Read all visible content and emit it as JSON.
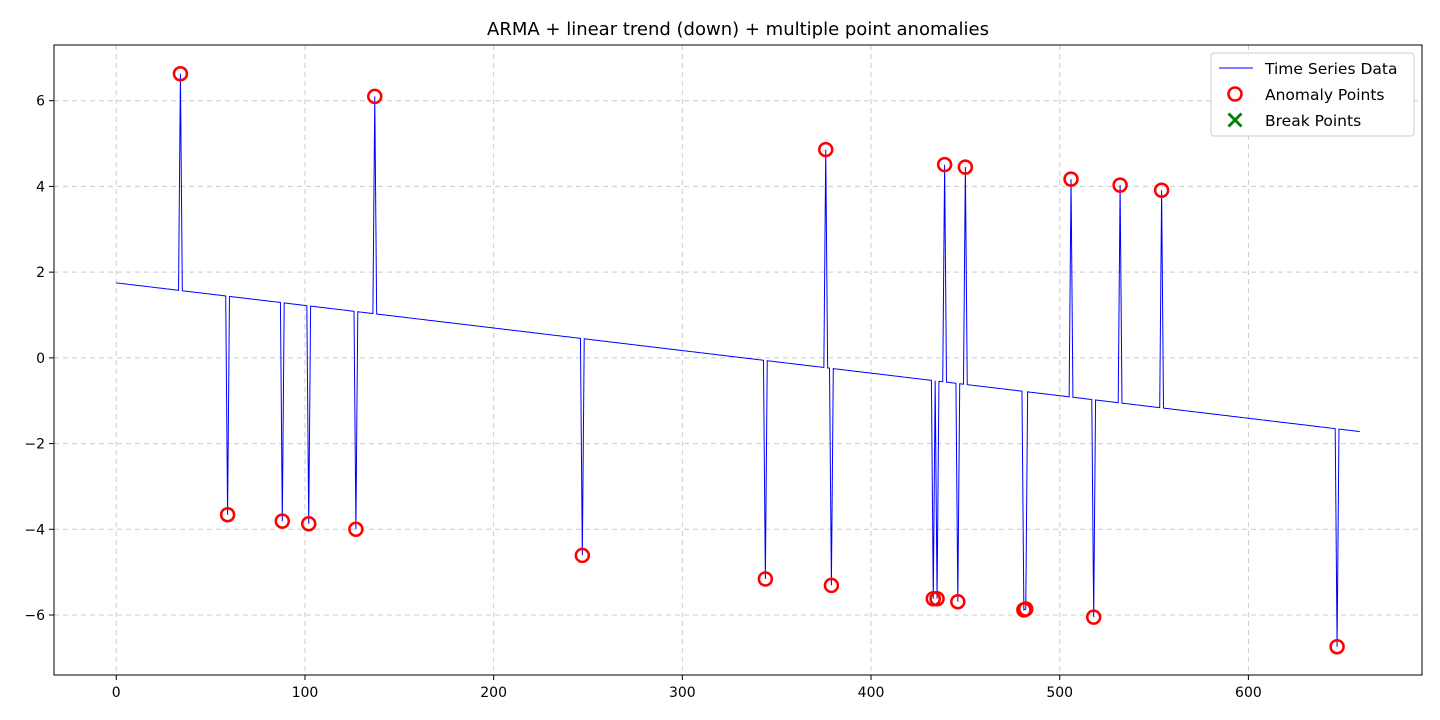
{
  "chart_data": {
    "type": "line",
    "title": "ARMA + linear trend (down) + multiple point anomalies",
    "xlabel": "",
    "ylabel": "",
    "xlim": [
      -33,
      692
    ],
    "ylim": [
      -7.4,
      7.3
    ],
    "xticks": [
      0,
      100,
      200,
      300,
      400,
      500,
      600
    ],
    "yticks": [
      -6,
      -4,
      -2,
      0,
      2,
      4,
      6
    ],
    "grid": true,
    "legend_position": "top-right",
    "series": [
      {
        "name": "Time Series Data",
        "kind": "line",
        "color": "#0000ff",
        "trend": {
          "x_start": 0,
          "y_start": 1.75,
          "x_end": 659,
          "y_end": -1.72
        }
      },
      {
        "name": "Anomaly Points",
        "kind": "scatter",
        "marker": "circle",
        "color": "#ff0000",
        "points": [
          {
            "x": 34,
            "y": 6.63
          },
          {
            "x": 59,
            "y": -3.66
          },
          {
            "x": 88,
            "y": -3.81
          },
          {
            "x": 102,
            "y": -3.87
          },
          {
            "x": 127,
            "y": -4.0
          },
          {
            "x": 137,
            "y": 6.1
          },
          {
            "x": 247,
            "y": -4.61
          },
          {
            "x": 344,
            "y": -5.16
          },
          {
            "x": 376,
            "y": 4.86
          },
          {
            "x": 379,
            "y": -5.31
          },
          {
            "x": 433,
            "y": -5.62
          },
          {
            "x": 435,
            "y": -5.62
          },
          {
            "x": 439,
            "y": 4.51
          },
          {
            "x": 446,
            "y": -5.69
          },
          {
            "x": 450,
            "y": 4.45
          },
          {
            "x": 481,
            "y": -5.88
          },
          {
            "x": 482,
            "y": -5.86
          },
          {
            "x": 506,
            "y": 4.17
          },
          {
            "x": 518,
            "y": -6.05
          },
          {
            "x": 532,
            "y": 4.03
          },
          {
            "x": 554,
            "y": 3.91
          },
          {
            "x": 647,
            "y": -6.74
          }
        ]
      },
      {
        "name": "Break Points",
        "kind": "scatter",
        "marker": "x",
        "color": "#008000",
        "points": []
      }
    ]
  }
}
